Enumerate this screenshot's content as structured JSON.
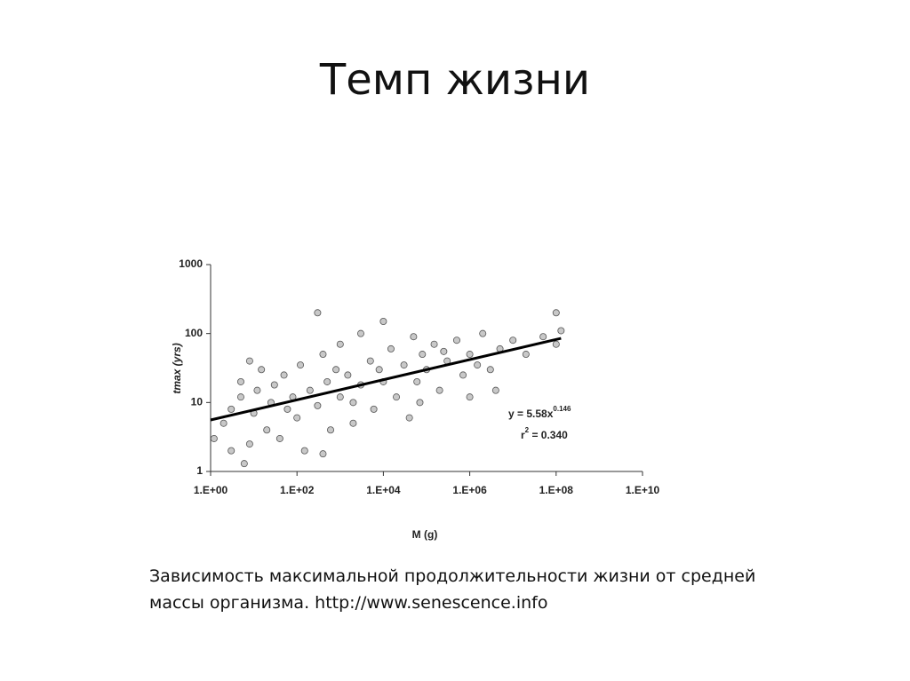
{
  "title": "Темп жизни",
  "chart_data": {
    "type": "scatter",
    "xlabel": "M (g)",
    "ylabel": "tmax (yrs)",
    "log_x": true,
    "log_y": true,
    "xlim": [
      1,
      10000000000
    ],
    "ylim": [
      1,
      1000
    ],
    "xticks": [
      {
        "value": 1,
        "label": "1.E+00"
      },
      {
        "value": 100,
        "label": "1.E+02"
      },
      {
        "value": 10000,
        "label": "1.E+04"
      },
      {
        "value": 1000000,
        "label": "1.E+06"
      },
      {
        "value": 100000000,
        "label": "1.E+08"
      },
      {
        "value": 10000000000,
        "label": "1.E+10"
      }
    ],
    "yticks": [
      1,
      10,
      100,
      1000
    ],
    "color": "#c8c8c8",
    "x": [
      1.2,
      2,
      3,
      5,
      5,
      6,
      8,
      8,
      10,
      12,
      15,
      20,
      25,
      30,
      40,
      50,
      60,
      80,
      100,
      120,
      150,
      200,
      300,
      300,
      400,
      500,
      600,
      800,
      1000,
      1000,
      1500,
      2000,
      3000,
      3000,
      5000,
      6000,
      8000,
      10000,
      10000,
      15000,
      20000,
      30000,
      50000,
      60000,
      80000,
      100000,
      150000,
      200000,
      300000,
      500000,
      700000,
      1000000,
      1500000,
      2000000,
      3000000,
      5000000,
      10000000,
      20000000,
      50000000,
      100000000,
      130000000,
      100000000,
      4000000,
      1000000,
      40000,
      400,
      3,
      2000,
      70000,
      250000
    ],
    "y": [
      3,
      5,
      8,
      20,
      12,
      1.3,
      2.5,
      40,
      7,
      15,
      30,
      4,
      10,
      18,
      3,
      25,
      8,
      12,
      6,
      35,
      2,
      15,
      200,
      9,
      50,
      20,
      4,
      30,
      12,
      70,
      25,
      5,
      100,
      18,
      40,
      8,
      30,
      150,
      20,
      60,
      12,
      35,
      90,
      20,
      50,
      30,
      70,
      15,
      40,
      80,
      25,
      50,
      35,
      100,
      30,
      60,
      80,
      50,
      90,
      200,
      110,
      70,
      15,
      12,
      6,
      1.8,
      2,
      10,
      10,
      55
    ],
    "fit_line": {
      "x": [
        1,
        130000000
      ],
      "y": [
        5.58,
        85.3
      ]
    },
    "equation": [
      "y = 5.58x",
      "0.146"
    ],
    "r_squared": [
      "r",
      "2",
      " = 0.340"
    ]
  },
  "caption": [
    "Зависимость максимальной продолжительности жизни от средней",
    "массы организма. http://www.senescence.info"
  ]
}
